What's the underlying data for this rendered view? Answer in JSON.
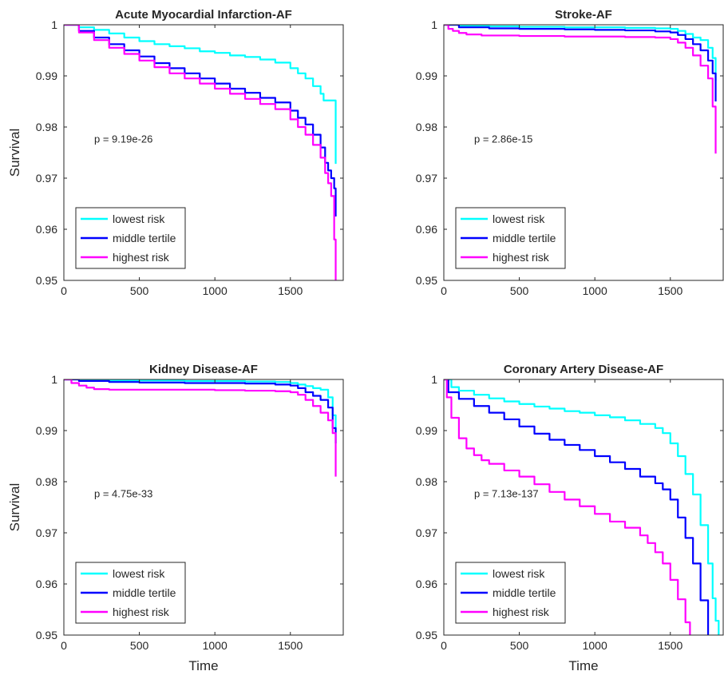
{
  "chart_data": [
    {
      "type": "line",
      "title": "Acute Myocardial Infarction-AF",
      "xlabel": "",
      "ylabel": "Survival",
      "xlim": [
        0,
        1850
      ],
      "ylim": [
        0.95,
        1
      ],
      "xticks": [
        "0",
        "500",
        "1000",
        "1500"
      ],
      "yticks": [
        "0.95",
        "0.96",
        "0.97",
        "0.98",
        "0.99",
        "1"
      ],
      "annotation": "p = 9.19e-26",
      "legend_position": "bottom-left",
      "series": [
        {
          "name": "lowest risk",
          "color": "#00FFFF",
          "x": [
            0,
            100,
            200,
            300,
            400,
            500,
            600,
            700,
            800,
            900,
            1000,
            1100,
            1200,
            1300,
            1400,
            1500,
            1550,
            1600,
            1650,
            1700,
            1720,
            1750,
            1790,
            1800
          ],
          "y": [
            1,
            0.9995,
            0.999,
            0.9983,
            0.9975,
            0.9968,
            0.9962,
            0.9958,
            0.9954,
            0.9948,
            0.9945,
            0.994,
            0.9937,
            0.9932,
            0.9926,
            0.9915,
            0.9905,
            0.9895,
            0.988,
            0.9865,
            0.9852,
            0.9852,
            0.9852,
            0.9728
          ]
        },
        {
          "name": "middle tertile",
          "color": "#0000FF",
          "x": [
            0,
            100,
            200,
            300,
            400,
            500,
            600,
            700,
            800,
            900,
            1000,
            1100,
            1200,
            1300,
            1400,
            1500,
            1550,
            1600,
            1650,
            1700,
            1730,
            1750,
            1770,
            1790,
            1800
          ],
          "y": [
            1,
            0.9988,
            0.9975,
            0.9962,
            0.995,
            0.9938,
            0.9925,
            0.9915,
            0.9905,
            0.9895,
            0.9885,
            0.9875,
            0.9867,
            0.9857,
            0.9848,
            0.9832,
            0.9818,
            0.9805,
            0.9785,
            0.976,
            0.973,
            0.9715,
            0.97,
            0.968,
            0.9625
          ]
        },
        {
          "name": "highest risk",
          "color": "#FF00FF",
          "x": [
            0,
            100,
            200,
            300,
            400,
            500,
            600,
            700,
            800,
            900,
            1000,
            1100,
            1200,
            1300,
            1400,
            1500,
            1550,
            1600,
            1650,
            1700,
            1730,
            1750,
            1770,
            1790,
            1800
          ],
          "y": [
            1,
            0.9985,
            0.997,
            0.9955,
            0.9943,
            0.993,
            0.9917,
            0.9905,
            0.9895,
            0.9885,
            0.9875,
            0.9865,
            0.9855,
            0.9845,
            0.9835,
            0.9815,
            0.98,
            0.9785,
            0.9765,
            0.974,
            0.971,
            0.969,
            0.9665,
            0.958,
            0.95
          ]
        }
      ]
    },
    {
      "type": "line",
      "title": "Stroke-AF",
      "xlabel": "",
      "ylabel": "",
      "xlim": [
        0,
        1850
      ],
      "ylim": [
        0.95,
        1
      ],
      "xticks": [
        "0",
        "500",
        "1000",
        "1500"
      ],
      "yticks": [
        "0.95",
        "0.96",
        "0.97",
        "0.98",
        "0.99",
        "1"
      ],
      "annotation": "p = 2.86e-15",
      "legend_position": "bottom-left",
      "series": [
        {
          "name": "lowest risk",
          "color": "#00FFFF",
          "x": [
            0,
            100,
            300,
            500,
            800,
            1000,
            1200,
            1400,
            1500,
            1550,
            1600,
            1650,
            1700,
            1750,
            1780,
            1800
          ],
          "y": [
            1,
            0.9998,
            0.9997,
            0.9996,
            0.9995,
            0.9995,
            0.9994,
            0.9993,
            0.9992,
            0.9988,
            0.9982,
            0.9975,
            0.997,
            0.9955,
            0.9935,
            0.989
          ]
        },
        {
          "name": "middle tertile",
          "color": "#0000FF",
          "x": [
            0,
            100,
            300,
            500,
            800,
            1000,
            1200,
            1400,
            1500,
            1550,
            1600,
            1650,
            1700,
            1750,
            1780,
            1800
          ],
          "y": [
            1,
            0.9995,
            0.9993,
            0.9992,
            0.9991,
            0.999,
            0.9989,
            0.9987,
            0.9985,
            0.998,
            0.9972,
            0.9962,
            0.995,
            0.993,
            0.9905,
            0.985
          ]
        },
        {
          "name": "highest risk",
          "color": "#FF00FF",
          "x": [
            0,
            30,
            60,
            100,
            150,
            250,
            500,
            800,
            1000,
            1200,
            1400,
            1500,
            1550,
            1600,
            1650,
            1700,
            1750,
            1780,
            1800
          ],
          "y": [
            1,
            0.9992,
            0.9988,
            0.9984,
            0.9981,
            0.9979,
            0.9978,
            0.9977,
            0.9977,
            0.9976,
            0.9975,
            0.9972,
            0.9965,
            0.9955,
            0.994,
            0.992,
            0.9895,
            0.984,
            0.9748
          ]
        }
      ]
    },
    {
      "type": "line",
      "title": "Kidney Disease-AF",
      "xlabel": "Time",
      "ylabel": "Survival",
      "xlim": [
        0,
        1850
      ],
      "ylim": [
        0.95,
        1
      ],
      "xticks": [
        "0",
        "500",
        "1000",
        "1500"
      ],
      "yticks": [
        "0.95",
        "0.96",
        "0.97",
        "0.98",
        "0.99",
        "1"
      ],
      "annotation": "p = 4.75e-33",
      "legend_position": "bottom-left",
      "series": [
        {
          "name": "lowest risk",
          "color": "#00FFFF",
          "x": [
            0,
            100,
            300,
            500,
            800,
            1000,
            1200,
            1400,
            1500,
            1550,
            1600,
            1650,
            1700,
            1750,
            1780,
            1800
          ],
          "y": [
            1,
            0.9999,
            0.9998,
            0.9998,
            0.9997,
            0.9997,
            0.9996,
            0.9995,
            0.9993,
            0.999,
            0.9987,
            0.9983,
            0.998,
            0.9965,
            0.993,
            0.9875
          ]
        },
        {
          "name": "middle tertile",
          "color": "#0000FF",
          "x": [
            0,
            100,
            300,
            500,
            800,
            1000,
            1200,
            1400,
            1500,
            1550,
            1600,
            1650,
            1700,
            1750,
            1780,
            1800
          ],
          "y": [
            1,
            0.9997,
            0.9995,
            0.9994,
            0.9993,
            0.9993,
            0.9992,
            0.999,
            0.9988,
            0.9983,
            0.9975,
            0.9968,
            0.996,
            0.9945,
            0.9905,
            0.9875
          ]
        },
        {
          "name": "highest risk",
          "color": "#FF00FF",
          "x": [
            0,
            50,
            100,
            150,
            200,
            300,
            500,
            800,
            1000,
            1200,
            1400,
            1500,
            1550,
            1600,
            1650,
            1700,
            1750,
            1780,
            1800
          ],
          "y": [
            1,
            0.9993,
            0.9988,
            0.9984,
            0.9981,
            0.998,
            0.998,
            0.998,
            0.9979,
            0.9978,
            0.9977,
            0.9975,
            0.997,
            0.996,
            0.9948,
            0.9935,
            0.992,
            0.9895,
            0.981
          ]
        }
      ]
    },
    {
      "type": "line",
      "title": "Coronary Artery Disease-AF",
      "xlabel": "Time",
      "ylabel": "",
      "xlim": [
        0,
        1850
      ],
      "ylim": [
        0.95,
        1
      ],
      "xticks": [
        "0",
        "500",
        "1000",
        "1500"
      ],
      "yticks": [
        "0.95",
        "0.96",
        "0.97",
        "0.98",
        "0.99",
        "1"
      ],
      "annotation": "p = 7.13e-137",
      "legend_position": "bottom-left",
      "series": [
        {
          "name": "lowest risk",
          "color": "#00FFFF",
          "x": [
            0,
            50,
            100,
            200,
            300,
            400,
            500,
            600,
            700,
            800,
            900,
            1000,
            1100,
            1200,
            1300,
            1400,
            1450,
            1500,
            1550,
            1600,
            1650,
            1700,
            1750,
            1780,
            1800,
            1820
          ],
          "y": [
            1,
            0.9985,
            0.9978,
            0.997,
            0.9963,
            0.9957,
            0.9952,
            0.9947,
            0.9943,
            0.9938,
            0.9935,
            0.993,
            0.9926,
            0.992,
            0.9913,
            0.9905,
            0.9895,
            0.9875,
            0.985,
            0.9815,
            0.9775,
            0.9715,
            0.964,
            0.9572,
            0.9528,
            0.95
          ]
        },
        {
          "name": "middle tertile",
          "color": "#0000FF",
          "x": [
            0,
            30,
            100,
            200,
            300,
            400,
            500,
            600,
            700,
            800,
            900,
            1000,
            1100,
            1200,
            1300,
            1400,
            1450,
            1500,
            1550,
            1600,
            1650,
            1700,
            1750
          ],
          "y": [
            1,
            0.9975,
            0.9962,
            0.9948,
            0.9935,
            0.9922,
            0.9908,
            0.9894,
            0.9882,
            0.9872,
            0.9862,
            0.985,
            0.9838,
            0.9825,
            0.981,
            0.9797,
            0.9785,
            0.9765,
            0.973,
            0.969,
            0.964,
            0.9568,
            0.95
          ]
        },
        {
          "name": "highest risk",
          "color": "#FF00FF",
          "x": [
            0,
            20,
            50,
            100,
            150,
            200,
            250,
            300,
            400,
            500,
            600,
            700,
            800,
            900,
            1000,
            1100,
            1200,
            1300,
            1350,
            1400,
            1450,
            1500,
            1550,
            1600,
            1630
          ],
          "y": [
            1,
            0.9965,
            0.9925,
            0.9885,
            0.9865,
            0.9852,
            0.9842,
            0.9835,
            0.9822,
            0.981,
            0.9795,
            0.978,
            0.9765,
            0.9752,
            0.9737,
            0.9722,
            0.971,
            0.9695,
            0.968,
            0.9662,
            0.964,
            0.9608,
            0.957,
            0.9525,
            0.95
          ]
        }
      ]
    }
  ]
}
